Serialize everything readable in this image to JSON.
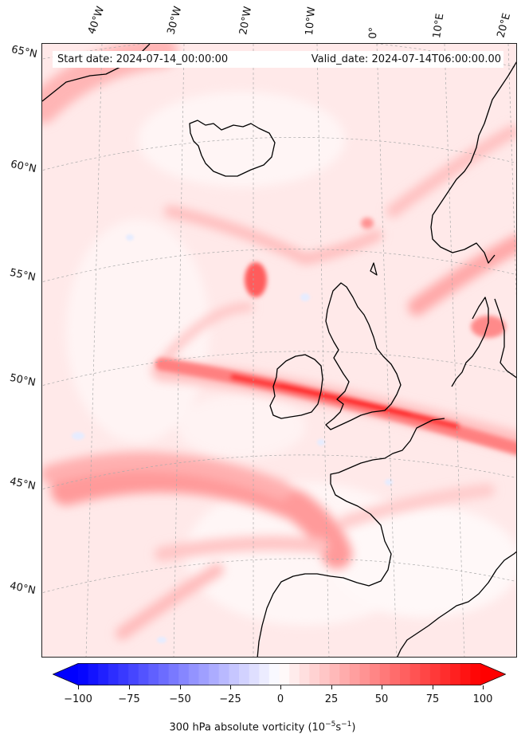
{
  "header": {
    "start_date": "Start date: 2024-07-14_00:00:00",
    "valid_date": "Valid_date: 2024-07-14T06:00:00.00"
  },
  "longitude_labels": [
    "40°W",
    "30°W",
    "20°W",
    "10°W",
    "0°",
    "10°E",
    "20°E"
  ],
  "latitude_labels": [
    "65°N",
    "60°N",
    "55°N",
    "50°N",
    "45°N",
    "40°N"
  ],
  "colorbar": {
    "ticks": [
      "−100",
      "−75",
      "−50",
      "−25",
      "0",
      "25",
      "50",
      "75",
      "100"
    ],
    "label_main": "300 hPa absolute vorticity (10",
    "label_sup1": "−5",
    "label_mid": "s",
    "label_sup2": "−1",
    "label_end": ")",
    "range": [
      -100,
      100
    ],
    "extend": "both",
    "colormap": "bwr",
    "low_color": "#0000ff",
    "mid_color": "#ffffff",
    "high_color": "#ff0000"
  },
  "map": {
    "field": "300 hPa absolute vorticity",
    "coastline_color": "#000000",
    "background_color": "#fff2f2",
    "gridline_color": "#aaaaaa"
  }
}
